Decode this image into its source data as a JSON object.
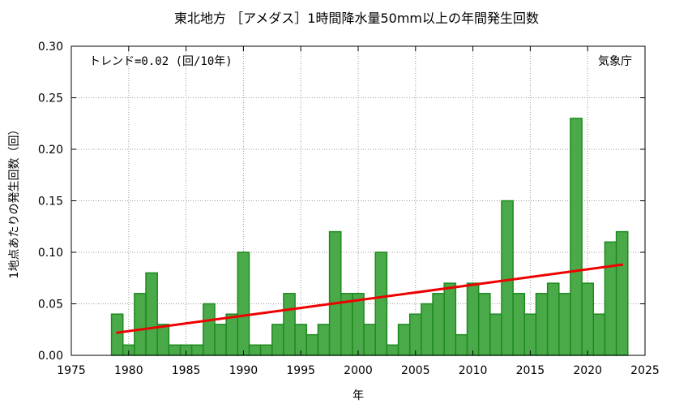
{
  "chart_data": {
    "type": "bar",
    "title": "東北地方 ［アメダス］1時間降水量50mm以上の年間発生回数",
    "xlabel": "年",
    "ylabel": "1地点あたりの発生回数（回）",
    "trend_label": "トレンド=0.02 (回/10年)",
    "source_label": "気象庁",
    "xlim": [
      1975,
      2025
    ],
    "ylim": [
      0,
      0.3
    ],
    "x_ticks": [
      "1975",
      "1980",
      "1985",
      "1990",
      "1995",
      "2000",
      "2005",
      "2010",
      "2015",
      "2020",
      "2025"
    ],
    "y_ticks": [
      "0.00",
      "0.05",
      "0.10",
      "0.15",
      "0.20",
      "0.25",
      "0.30"
    ],
    "grid": true,
    "categories": [
      1979,
      1980,
      1981,
      1982,
      1983,
      1984,
      1985,
      1986,
      1987,
      1988,
      1989,
      1990,
      1991,
      1992,
      1993,
      1994,
      1995,
      1996,
      1997,
      1998,
      1999,
      2000,
      2001,
      2002,
      2003,
      2004,
      2005,
      2006,
      2007,
      2008,
      2009,
      2010,
      2011,
      2012,
      2013,
      2014,
      2015,
      2016,
      2017,
      2018,
      2019,
      2020,
      2021,
      2022,
      2023
    ],
    "values": [
      0.04,
      0.01,
      0.06,
      0.08,
      0.03,
      0.01,
      0.01,
      0.01,
      0.05,
      0.03,
      0.04,
      0.1,
      0.01,
      0.01,
      0.03,
      0.06,
      0.03,
      0.02,
      0.03,
      0.12,
      0.06,
      0.06,
      0.03,
      0.1,
      0.01,
      0.03,
      0.04,
      0.05,
      0.06,
      0.07,
      0.02,
      0.07,
      0.06,
      0.04,
      0.15,
      0.06,
      0.04,
      0.06,
      0.07,
      0.06,
      0.23,
      0.07,
      0.04,
      0.11,
      0.12
    ],
    "trend": {
      "x": [
        1979,
        2023
      ],
      "y": [
        0.022,
        0.088
      ]
    },
    "colors": {
      "bar_fill": "#4aaa4a",
      "bar_stroke": "#1e8a1e",
      "trend": "#ee0000",
      "grid": "#999999"
    }
  }
}
